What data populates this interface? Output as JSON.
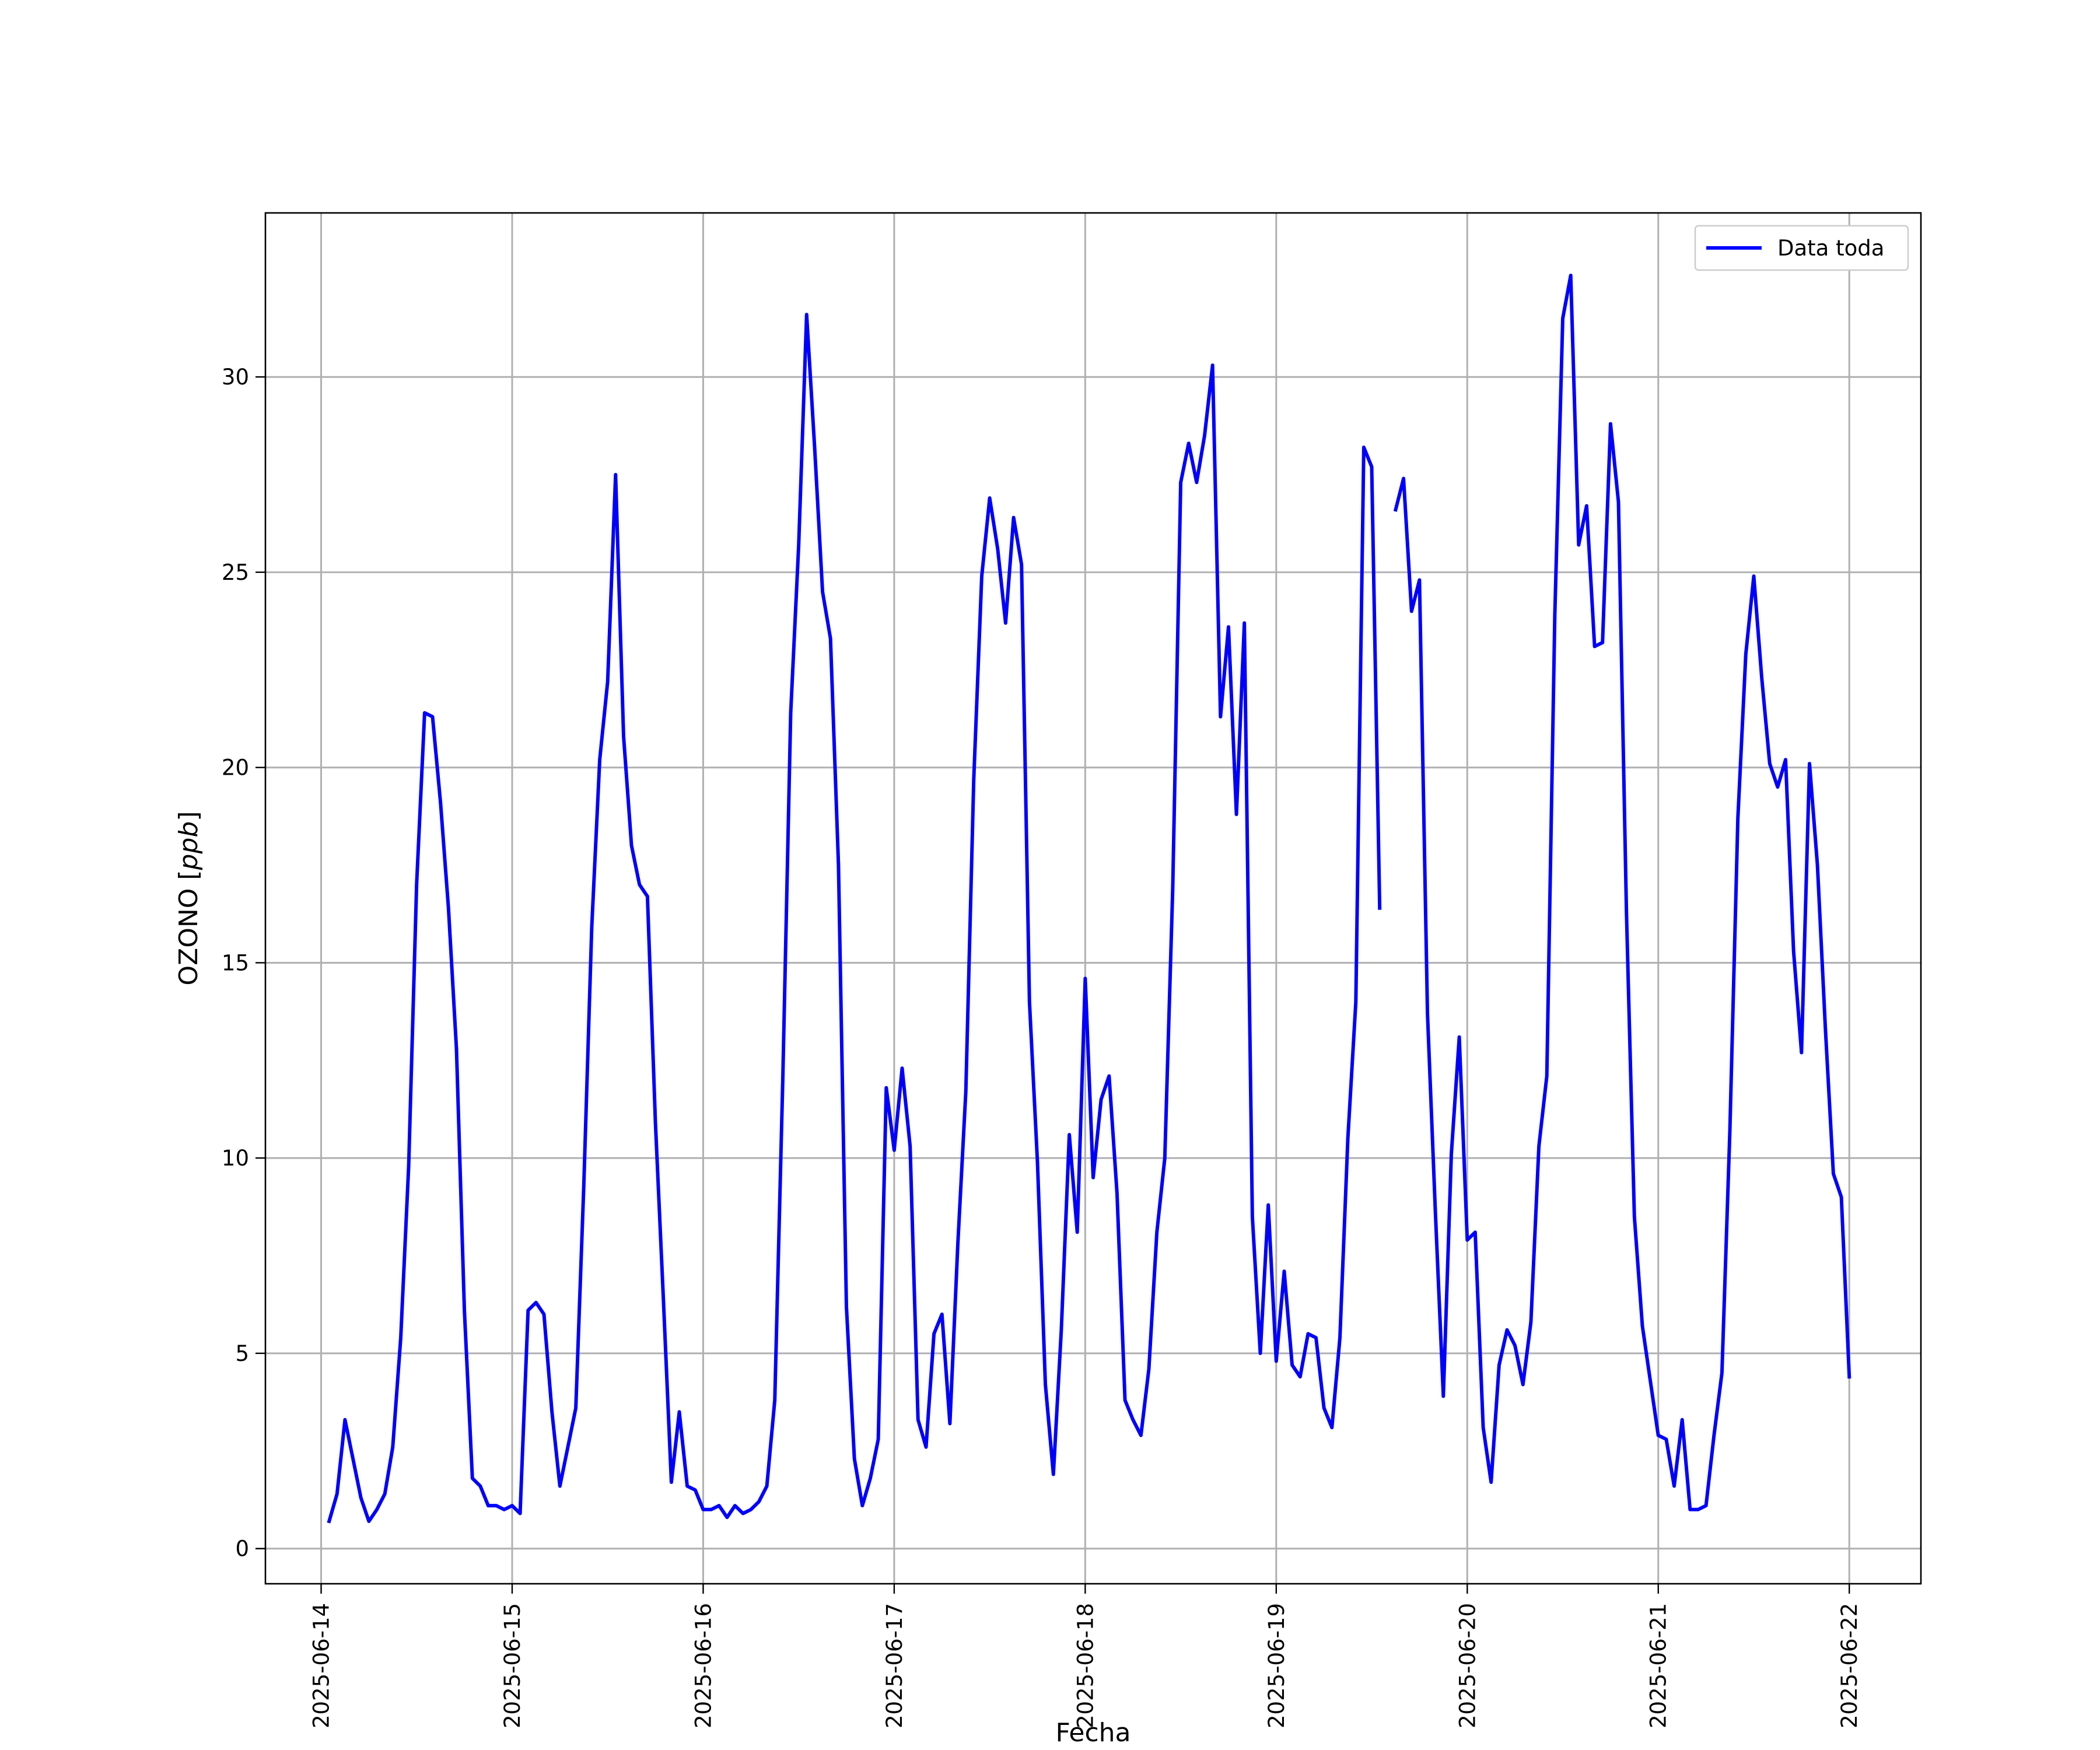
{
  "chart_data": {
    "type": "line",
    "title": "",
    "xlabel": "Fecha",
    "ylabel": "OZONO [ppb]",
    "ylabel_parts": {
      "prefix": "OZONO [",
      "unit": "ppb",
      "suffix": "]"
    },
    "x_ticks": [
      "2025-06-14",
      "2025-06-15",
      "2025-06-16",
      "2025-06-17",
      "2025-06-18",
      "2025-06-19",
      "2025-06-20",
      "2025-06-21",
      "2025-06-22"
    ],
    "y_ticks": [
      0,
      5,
      10,
      15,
      20,
      25,
      30
    ],
    "ylim": [
      -0.9,
      34.2
    ],
    "xlim": [
      "2025-06-13T17:00",
      "2025-06-22T09:00"
    ],
    "grid": true,
    "legend_position": "top-right",
    "series": [
      {
        "name": "Data toda",
        "color": "#0000ff",
        "points": [
          [
            "2025-06-14T01:00",
            0.7
          ],
          [
            "2025-06-14T02:00",
            1.4
          ],
          [
            "2025-06-14T03:00",
            3.3
          ],
          [
            "2025-06-14T04:00",
            2.3
          ],
          [
            "2025-06-14T05:00",
            1.3
          ],
          [
            "2025-06-14T06:00",
            0.7
          ],
          [
            "2025-06-14T07:00",
            1.0
          ],
          [
            "2025-06-14T08:00",
            1.4
          ],
          [
            "2025-06-14T09:00",
            2.6
          ],
          [
            "2025-06-14T10:00",
            5.4
          ],
          [
            "2025-06-14T11:00",
            9.8
          ],
          [
            "2025-06-14T12:00",
            17.0
          ],
          [
            "2025-06-14T13:00",
            21.4
          ],
          [
            "2025-06-14T14:00",
            21.3
          ],
          [
            "2025-06-14T15:00",
            19.1
          ],
          [
            "2025-06-14T16:00",
            16.4
          ],
          [
            "2025-06-14T17:00",
            12.8
          ],
          [
            "2025-06-14T18:00",
            6.1
          ],
          [
            "2025-06-14T19:00",
            1.8
          ],
          [
            "2025-06-14T20:00",
            1.6
          ],
          [
            "2025-06-14T21:00",
            1.1
          ],
          [
            "2025-06-14T22:00",
            1.1
          ],
          [
            "2025-06-14T23:00",
            1.0
          ],
          [
            "2025-06-15T00:00",
            1.1
          ],
          [
            "2025-06-15T01:00",
            0.9
          ],
          [
            "2025-06-15T02:00",
            6.1
          ],
          [
            "2025-06-15T03:00",
            6.3
          ],
          [
            "2025-06-15T04:00",
            6.0
          ],
          [
            "2025-06-15T05:00",
            3.5
          ],
          [
            "2025-06-15T06:00",
            1.6
          ],
          [
            "2025-06-15T07:00",
            2.6
          ],
          [
            "2025-06-15T08:00",
            3.6
          ],
          [
            "2025-06-15T09:00",
            9.3
          ],
          [
            "2025-06-15T10:00",
            15.9
          ],
          [
            "2025-06-15T11:00",
            20.2
          ],
          [
            "2025-06-15T12:00",
            22.2
          ],
          [
            "2025-06-15T13:00",
            27.5
          ],
          [
            "2025-06-15T14:00",
            20.8
          ],
          [
            "2025-06-15T15:00",
            18.0
          ],
          [
            "2025-06-15T16:00",
            17.0
          ],
          [
            "2025-06-15T17:00",
            16.7
          ],
          [
            "2025-06-15T18:00",
            10.9
          ],
          [
            "2025-06-15T19:00",
            6.4
          ],
          [
            "2025-06-15T20:00",
            1.7
          ],
          [
            "2025-06-15T21:00",
            3.5
          ],
          [
            "2025-06-15T22:00",
            1.6
          ],
          [
            "2025-06-15T23:00",
            1.5
          ],
          [
            "2025-06-16T00:00",
            1.0
          ],
          [
            "2025-06-16T01:00",
            1.0
          ],
          [
            "2025-06-16T02:00",
            1.1
          ],
          [
            "2025-06-16T03:00",
            0.8
          ],
          [
            "2025-06-16T04:00",
            1.1
          ],
          [
            "2025-06-16T05:00",
            0.9
          ],
          [
            "2025-06-16T06:00",
            1.0
          ],
          [
            "2025-06-16T07:00",
            1.2
          ],
          [
            "2025-06-16T08:00",
            1.6
          ],
          [
            "2025-06-16T09:00",
            3.8
          ],
          [
            "2025-06-16T10:00",
            12.0
          ],
          [
            "2025-06-16T11:00",
            21.4
          ],
          [
            "2025-06-16T12:00",
            25.7
          ],
          [
            "2025-06-16T13:00",
            31.6
          ],
          [
            "2025-06-16T14:00",
            28.2
          ],
          [
            "2025-06-16T15:00",
            24.5
          ],
          [
            "2025-06-16T16:00",
            23.3
          ],
          [
            "2025-06-16T17:00",
            17.5
          ],
          [
            "2025-06-16T18:00",
            6.2
          ],
          [
            "2025-06-16T19:00",
            2.3
          ],
          [
            "2025-06-16T20:00",
            1.1
          ],
          [
            "2025-06-16T21:00",
            1.8
          ],
          [
            "2025-06-16T22:00",
            2.8
          ],
          [
            "2025-06-16T23:00",
            11.8
          ],
          [
            "2025-06-17T00:00",
            10.2
          ],
          [
            "2025-06-17T01:00",
            12.3
          ],
          [
            "2025-06-17T02:00",
            10.3
          ],
          [
            "2025-06-17T03:00",
            3.3
          ],
          [
            "2025-06-17T04:00",
            2.6
          ],
          [
            "2025-06-17T05:00",
            5.5
          ],
          [
            "2025-06-17T06:00",
            6.0
          ],
          [
            "2025-06-17T07:00",
            3.2
          ],
          [
            "2025-06-17T08:00",
            7.8
          ],
          [
            "2025-06-17T09:00",
            11.7
          ],
          [
            "2025-06-17T10:00",
            19.7
          ],
          [
            "2025-06-17T11:00",
            24.9
          ],
          [
            "2025-06-17T12:00",
            26.9
          ],
          [
            "2025-06-17T13:00",
            25.6
          ],
          [
            "2025-06-17T14:00",
            23.7
          ],
          [
            "2025-06-17T15:00",
            26.4
          ],
          [
            "2025-06-17T16:00",
            25.2
          ],
          [
            "2025-06-17T17:00",
            14.0
          ],
          [
            "2025-06-17T18:00",
            9.9
          ],
          [
            "2025-06-17T19:00",
            4.2
          ],
          [
            "2025-06-17T20:00",
            1.9
          ],
          [
            "2025-06-17T21:00",
            5.6
          ],
          [
            "2025-06-17T22:00",
            10.6
          ],
          [
            "2025-06-17T23:00",
            8.1
          ],
          [
            "2025-06-18T00:00",
            14.6
          ],
          [
            "2025-06-18T01:00",
            9.5
          ],
          [
            "2025-06-18T02:00",
            11.5
          ],
          [
            "2025-06-18T03:00",
            12.1
          ],
          [
            "2025-06-18T04:00",
            9.1
          ],
          [
            "2025-06-18T05:00",
            3.8
          ],
          [
            "2025-06-18T06:00",
            3.3
          ],
          [
            "2025-06-18T07:00",
            2.9
          ],
          [
            "2025-06-18T08:00",
            4.6
          ],
          [
            "2025-06-18T09:00",
            8.1
          ],
          [
            "2025-06-18T10:00",
            10.0
          ],
          [
            "2025-06-18T11:00",
            16.9
          ],
          [
            "2025-06-18T12:00",
            27.3
          ],
          [
            "2025-06-18T13:00",
            28.3
          ],
          [
            "2025-06-18T14:00",
            27.3
          ],
          [
            "2025-06-18T15:00",
            28.5
          ],
          [
            "2025-06-18T16:00",
            30.3
          ],
          [
            "2025-06-18T17:00",
            21.3
          ],
          [
            "2025-06-18T18:00",
            23.6
          ],
          [
            "2025-06-18T19:00",
            18.8
          ],
          [
            "2025-06-18T20:00",
            23.7
          ],
          [
            "2025-06-18T21:00",
            8.5
          ],
          [
            "2025-06-18T22:00",
            5.0
          ],
          [
            "2025-06-18T23:00",
            8.8
          ],
          [
            "2025-06-19T00:00",
            4.8
          ],
          [
            "2025-06-19T01:00",
            7.1
          ],
          [
            "2025-06-19T02:00",
            4.7
          ],
          [
            "2025-06-19T03:00",
            4.4
          ],
          [
            "2025-06-19T04:00",
            5.5
          ],
          [
            "2025-06-19T05:00",
            5.4
          ],
          [
            "2025-06-19T06:00",
            3.6
          ],
          [
            "2025-06-19T07:00",
            3.1
          ],
          [
            "2025-06-19T08:00",
            5.4
          ],
          [
            "2025-06-19T09:00",
            10.5
          ],
          [
            "2025-06-19T10:00",
            14.0
          ],
          [
            "2025-06-19T11:00",
            28.2
          ],
          [
            "2025-06-19T12:00",
            27.7
          ],
          [
            "2025-06-19T13:00",
            16.4
          ],
          null,
          [
            "2025-06-19T15:00",
            26.6
          ],
          [
            "2025-06-19T16:00",
            27.4
          ],
          [
            "2025-06-19T17:00",
            24.0
          ],
          [
            "2025-06-19T18:00",
            24.8
          ],
          [
            "2025-06-19T19:00",
            13.7
          ],
          [
            "2025-06-19T20:00",
            8.6
          ],
          [
            "2025-06-19T21:00",
            3.9
          ],
          [
            "2025-06-19T22:00",
            10.1
          ],
          [
            "2025-06-19T23:00",
            13.1
          ],
          [
            "2025-06-20T00:00",
            7.9
          ],
          [
            "2025-06-20T01:00",
            8.1
          ],
          [
            "2025-06-20T02:00",
            3.1
          ],
          [
            "2025-06-20T03:00",
            1.7
          ],
          [
            "2025-06-20T04:00",
            4.7
          ],
          [
            "2025-06-20T05:00",
            5.6
          ],
          [
            "2025-06-20T06:00",
            5.2
          ],
          [
            "2025-06-20T07:00",
            4.2
          ],
          [
            "2025-06-20T08:00",
            5.8
          ],
          [
            "2025-06-20T09:00",
            10.3
          ],
          [
            "2025-06-20T10:00",
            12.1
          ],
          [
            "2025-06-20T11:00",
            23.9
          ],
          [
            "2025-06-20T12:00",
            31.5
          ],
          [
            "2025-06-20T13:00",
            32.6
          ],
          [
            "2025-06-20T14:00",
            25.7
          ],
          [
            "2025-06-20T15:00",
            26.7
          ],
          [
            "2025-06-20T16:00",
            23.1
          ],
          [
            "2025-06-20T17:00",
            23.2
          ],
          [
            "2025-06-20T18:00",
            28.8
          ],
          [
            "2025-06-20T19:00",
            26.8
          ],
          [
            "2025-06-20T20:00",
            16.3
          ],
          [
            "2025-06-20T21:00",
            8.5
          ],
          [
            "2025-06-20T22:00",
            5.7
          ],
          [
            "2025-06-20T23:00",
            4.3
          ],
          [
            "2025-06-21T00:00",
            2.9
          ],
          [
            "2025-06-21T01:00",
            2.8
          ],
          [
            "2025-06-21T02:00",
            1.6
          ],
          [
            "2025-06-21T03:00",
            3.3
          ],
          [
            "2025-06-21T04:00",
            1.0
          ],
          [
            "2025-06-21T05:00",
            1.0
          ],
          [
            "2025-06-21T06:00",
            1.1
          ],
          [
            "2025-06-21T07:00",
            2.9
          ],
          [
            "2025-06-21T08:00",
            4.5
          ],
          [
            "2025-06-21T09:00",
            10.7
          ],
          [
            "2025-06-21T10:00",
            18.7
          ],
          [
            "2025-06-21T11:00",
            22.9
          ],
          [
            "2025-06-21T12:00",
            24.9
          ],
          [
            "2025-06-21T13:00",
            22.3
          ],
          [
            "2025-06-21T14:00",
            20.1
          ],
          [
            "2025-06-21T15:00",
            19.5
          ],
          [
            "2025-06-21T16:00",
            20.2
          ],
          [
            "2025-06-21T17:00",
            15.3
          ],
          [
            "2025-06-21T18:00",
            12.7
          ],
          [
            "2025-06-21T19:00",
            20.1
          ],
          [
            "2025-06-21T20:00",
            17.5
          ],
          [
            "2025-06-21T21:00",
            13.3
          ],
          [
            "2025-06-21T22:00",
            9.6
          ],
          [
            "2025-06-21T23:00",
            9.0
          ],
          [
            "2025-06-22T00:00",
            4.4
          ]
        ]
      }
    ]
  }
}
